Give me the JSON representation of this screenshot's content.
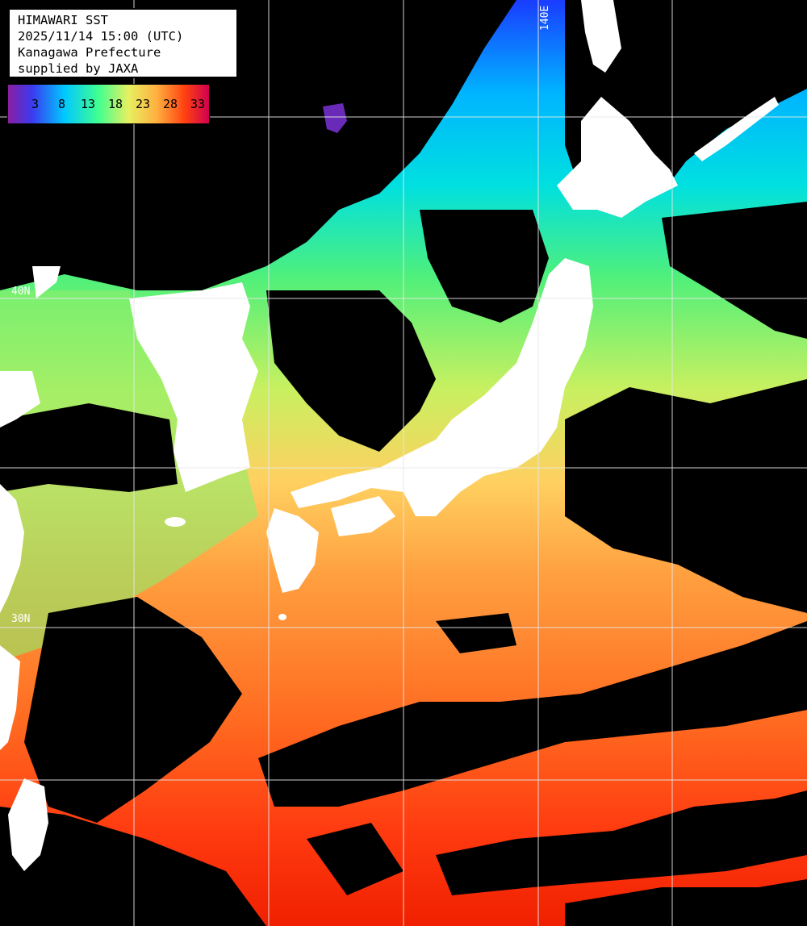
{
  "title": {
    "line1": "HIMAWARI SST",
    "line2": "2025/11/14 15:00 (UTC)",
    "line3": "Kanagawa Prefecture",
    "line4": "supplied by JAXA"
  },
  "legend": {
    "ticks": [
      "3",
      "8",
      "13",
      "18",
      "23",
      "28",
      "33"
    ],
    "colors": [
      "#8a1fa0",
      "#3a3af0",
      "#00c8ff",
      "#40ff90",
      "#e8f060",
      "#ffb040",
      "#ff4010",
      "#d00050"
    ]
  },
  "grid_labels": {
    "lon_140": "140E",
    "lat_40": "40N",
    "lat_30": "30N"
  },
  "colors": {
    "land": "#ffffff",
    "cloud": "#000000",
    "grid": "#e8e8e8"
  }
}
